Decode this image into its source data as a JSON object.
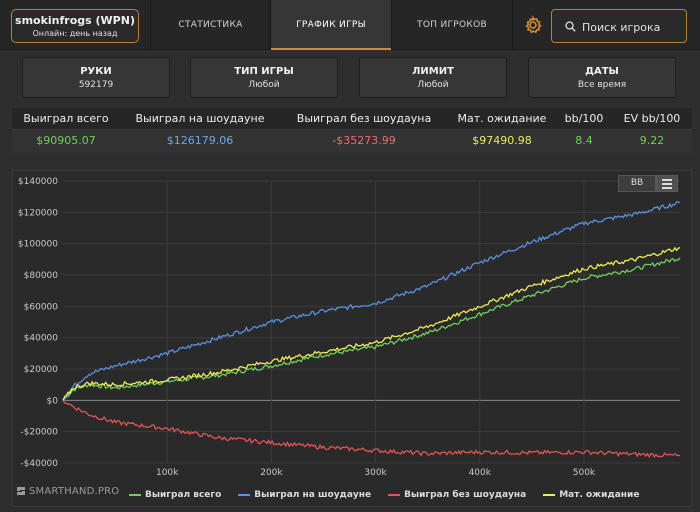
{
  "header": {
    "user_name": "smokinfrogs (WPN)",
    "user_status": "Онлайн: день назад",
    "tabs": [
      {
        "label": "Статистика"
      },
      {
        "label": "График игры"
      },
      {
        "label": "Топ игроков"
      }
    ],
    "search_placeholder": "Поиск игрока",
    "settings_icon": "gear-icon",
    "search_icon": "search-icon"
  },
  "filters": [
    {
      "label": "Руки",
      "value": "592179"
    },
    {
      "label": "Тип игры",
      "value": "Любой"
    },
    {
      "label": "Лимит",
      "value": "Любой"
    },
    {
      "label": "Даты",
      "value": "Все время"
    }
  ],
  "stats": {
    "headers": [
      "Выиграл всего",
      "Выиграл на шоудауне",
      "Выиграл без шоудауна",
      "Мат. ожидание",
      "bb/100",
      "EV bb/100"
    ],
    "values": [
      "$90905.07",
      "$126179.06",
      "-$35273.99",
      "$97490.98",
      "8.4",
      "9.22"
    ],
    "value_colors": [
      "#6fcf5a",
      "#6aa8ec",
      "#ef6a6a",
      "#eceb5a",
      "#6fcf5a",
      "#6fcf5a"
    ]
  },
  "chart_toolbar": {
    "bb_label": "BB",
    "menu_icon": "hamburger-icon"
  },
  "brand": {
    "text": "SMARTHAND.PRO"
  },
  "chart_data": {
    "type": "line",
    "title": "",
    "xlabel": "",
    "ylabel": "",
    "xlim": [
      0,
      592179
    ],
    "ylim": [
      -40000,
      140000
    ],
    "yticks": [
      -40000,
      -20000,
      0,
      20000,
      40000,
      60000,
      80000,
      100000,
      120000,
      140000
    ],
    "ytick_labels": [
      "-$40000",
      "-$20000",
      "$0",
      "$20000",
      "$40000",
      "$60000",
      "$80000",
      "$100000",
      "$120000",
      "$140000"
    ],
    "xticks": [
      100000,
      200000,
      300000,
      400000,
      500000
    ],
    "xtick_labels": [
      "100k",
      "200k",
      "300k",
      "400k",
      "500k"
    ],
    "grid": true,
    "legend_position": "bottom",
    "x": [
      0,
      10000,
      25000,
      50000,
      100000,
      150000,
      200000,
      250000,
      300000,
      350000,
      400000,
      450000,
      500000,
      550000,
      592179
    ],
    "series": [
      {
        "name": "Выиграл всего",
        "color": "#6fcf5a",
        "values": [
          0,
          7000,
          10000,
          8000,
          12000,
          16000,
          22000,
          29000,
          34000,
          43000,
          55000,
          67000,
          78000,
          84000,
          90905
        ]
      },
      {
        "name": "Выиграл на шоудауне",
        "color": "#5b8fe0",
        "values": [
          0,
          9000,
          17000,
          22000,
          30000,
          40000,
          50000,
          57000,
          62000,
          73000,
          88000,
          101000,
          113000,
          119000,
          126179
        ]
      },
      {
        "name": "Выиграл без шоудауна",
        "color": "#e05555",
        "values": [
          0,
          -4000,
          -9000,
          -14000,
          -18000,
          -24000,
          -27000,
          -30000,
          -32000,
          -34000,
          -33000,
          -33500,
          -33000,
          -34500,
          -35274
        ]
      },
      {
        "name": "Мат. ожидание",
        "color": "#eceb5a",
        "values": [
          0,
          8000,
          11000,
          10000,
          13000,
          18000,
          25000,
          31000,
          37000,
          47000,
          60000,
          73000,
          84000,
          90000,
          97491
        ]
      }
    ]
  }
}
